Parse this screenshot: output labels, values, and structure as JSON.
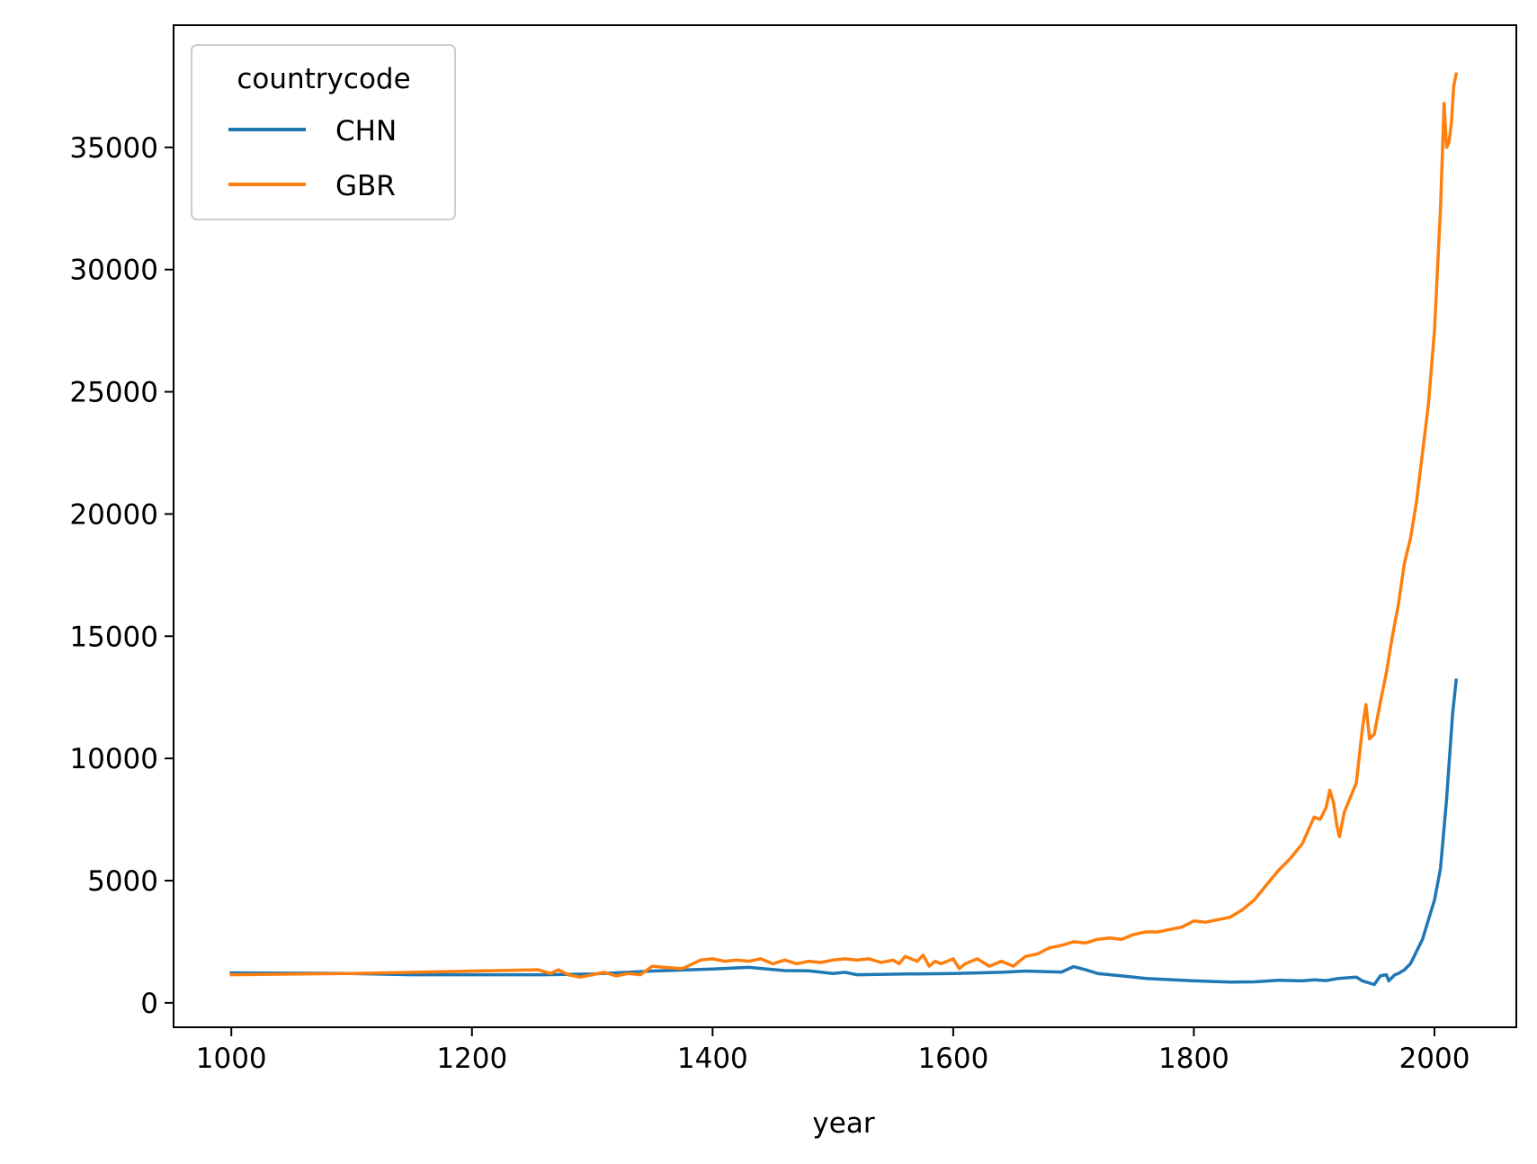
{
  "chart_data": {
    "type": "line",
    "title": "",
    "xlabel": "year",
    "ylabel": "",
    "xlim": [
      952,
      2068
    ],
    "ylim": [
      -1000,
      40000
    ],
    "x_ticks": [
      1000,
      1200,
      1400,
      1600,
      1800,
      2000
    ],
    "x_tick_labels": [
      "1000",
      "1200",
      "1400",
      "1600",
      "1800",
      "2000"
    ],
    "y_ticks": [
      0,
      5000,
      10000,
      15000,
      20000,
      25000,
      30000,
      35000
    ],
    "y_tick_labels": [
      "0",
      "5000",
      "10000",
      "15000",
      "20000",
      "25000",
      "30000",
      "35000"
    ],
    "grid": false,
    "legend": {
      "title": "countrycode",
      "placement": "top-left"
    },
    "series": [
      {
        "name": "CHN",
        "color": "#1f77b4",
        "points": [
          [
            1000,
            1225
          ],
          [
            1100,
            1200
          ],
          [
            1150,
            1150
          ],
          [
            1200,
            1150
          ],
          [
            1260,
            1150
          ],
          [
            1300,
            1180
          ],
          [
            1350,
            1300
          ],
          [
            1400,
            1380
          ],
          [
            1430,
            1450
          ],
          [
            1460,
            1320
          ],
          [
            1480,
            1310
          ],
          [
            1500,
            1200
          ],
          [
            1510,
            1250
          ],
          [
            1520,
            1150
          ],
          [
            1560,
            1180
          ],
          [
            1600,
            1200
          ],
          [
            1640,
            1250
          ],
          [
            1660,
            1300
          ],
          [
            1690,
            1260
          ],
          [
            1700,
            1480
          ],
          [
            1710,
            1350
          ],
          [
            1720,
            1200
          ],
          [
            1740,
            1100
          ],
          [
            1760,
            1000
          ],
          [
            1800,
            900
          ],
          [
            1830,
            850
          ],
          [
            1850,
            860
          ],
          [
            1870,
            920
          ],
          [
            1890,
            900
          ],
          [
            1900,
            940
          ],
          [
            1910,
            910
          ],
          [
            1920,
            1000
          ],
          [
            1935,
            1050
          ],
          [
            1940,
            900
          ],
          [
            1950,
            750
          ],
          [
            1955,
            1100
          ],
          [
            1960,
            1150
          ],
          [
            1962,
            900
          ],
          [
            1967,
            1150
          ],
          [
            1970,
            1200
          ],
          [
            1975,
            1350
          ],
          [
            1980,
            1600
          ],
          [
            1985,
            2100
          ],
          [
            1990,
            2600
          ],
          [
            1995,
            3400
          ],
          [
            2000,
            4200
          ],
          [
            2005,
            5500
          ],
          [
            2010,
            8300
          ],
          [
            2015,
            11800
          ],
          [
            2018,
            13200
          ]
        ]
      },
      {
        "name": "GBR",
        "color": "#ff7f0e",
        "points": [
          [
            1000,
            1150
          ],
          [
            1100,
            1200
          ],
          [
            1150,
            1250
          ],
          [
            1200,
            1300
          ],
          [
            1255,
            1350
          ],
          [
            1265,
            1200
          ],
          [
            1272,
            1350
          ],
          [
            1280,
            1150
          ],
          [
            1290,
            1050
          ],
          [
            1300,
            1150
          ],
          [
            1310,
            1250
          ],
          [
            1320,
            1100
          ],
          [
            1330,
            1200
          ],
          [
            1340,
            1150
          ],
          [
            1350,
            1500
          ],
          [
            1360,
            1450
          ],
          [
            1375,
            1400
          ],
          [
            1390,
            1750
          ],
          [
            1400,
            1800
          ],
          [
            1410,
            1700
          ],
          [
            1420,
            1750
          ],
          [
            1430,
            1700
          ],
          [
            1440,
            1800
          ],
          [
            1450,
            1600
          ],
          [
            1460,
            1750
          ],
          [
            1470,
            1600
          ],
          [
            1480,
            1700
          ],
          [
            1490,
            1650
          ],
          [
            1500,
            1750
          ],
          [
            1510,
            1800
          ],
          [
            1520,
            1750
          ],
          [
            1530,
            1800
          ],
          [
            1540,
            1650
          ],
          [
            1550,
            1750
          ],
          [
            1555,
            1600
          ],
          [
            1560,
            1900
          ],
          [
            1570,
            1700
          ],
          [
            1575,
            1950
          ],
          [
            1580,
            1500
          ],
          [
            1585,
            1700
          ],
          [
            1590,
            1600
          ],
          [
            1600,
            1800
          ],
          [
            1605,
            1400
          ],
          [
            1610,
            1600
          ],
          [
            1620,
            1800
          ],
          [
            1630,
            1500
          ],
          [
            1640,
            1700
          ],
          [
            1650,
            1500
          ],
          [
            1660,
            1900
          ],
          [
            1670,
            2000
          ],
          [
            1680,
            2250
          ],
          [
            1690,
            2350
          ],
          [
            1700,
            2500
          ],
          [
            1710,
            2450
          ],
          [
            1720,
            2600
          ],
          [
            1730,
            2650
          ],
          [
            1740,
            2600
          ],
          [
            1750,
            2800
          ],
          [
            1760,
            2900
          ],
          [
            1770,
            2900
          ],
          [
            1780,
            3000
          ],
          [
            1790,
            3100
          ],
          [
            1800,
            3350
          ],
          [
            1810,
            3300
          ],
          [
            1820,
            3400
          ],
          [
            1830,
            3500
          ],
          [
            1840,
            3800
          ],
          [
            1850,
            4200
          ],
          [
            1860,
            4800
          ],
          [
            1870,
            5400
          ],
          [
            1880,
            5900
          ],
          [
            1890,
            6500
          ],
          [
            1900,
            7600
          ],
          [
            1905,
            7500
          ],
          [
            1910,
            8000
          ],
          [
            1913,
            8700
          ],
          [
            1916,
            8200
          ],
          [
            1919,
            7200
          ],
          [
            1921,
            6800
          ],
          [
            1925,
            7800
          ],
          [
            1930,
            8400
          ],
          [
            1935,
            9000
          ],
          [
            1940,
            11200
          ],
          [
            1943,
            12200
          ],
          [
            1946,
            10800
          ],
          [
            1950,
            11000
          ],
          [
            1955,
            12300
          ],
          [
            1960,
            13500
          ],
          [
            1965,
            15000
          ],
          [
            1970,
            16300
          ],
          [
            1975,
            18000
          ],
          [
            1980,
            19000
          ],
          [
            1985,
            20500
          ],
          [
            1990,
            22500
          ],
          [
            1995,
            24500
          ],
          [
            2000,
            27500
          ],
          [
            2005,
            32500
          ],
          [
            2008,
            36800
          ],
          [
            2010,
            35000
          ],
          [
            2012,
            35200
          ],
          [
            2014,
            36000
          ],
          [
            2016,
            37500
          ],
          [
            2018,
            38000
          ]
        ]
      }
    ]
  }
}
